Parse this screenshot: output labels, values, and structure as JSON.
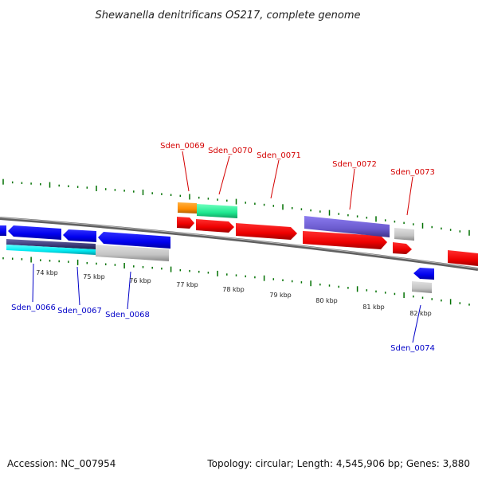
{
  "title": "Shewanella denitrificans OS217, complete genome",
  "footer": {
    "accession": "Accession: NC_007954",
    "topology": "Topology: circular; Length: 4,545,906 bp; Genes: 3,880"
  },
  "ruler_labels": [
    "74 kbp",
    "75 kbp",
    "76 kbp",
    "77 kbp",
    "78 kbp",
    "79 kbp",
    "80 kbp",
    "81 kbp",
    "82 kbp"
  ],
  "genes_forward": [
    {
      "id": "Sden_0069",
      "label": "Sden_0069"
    },
    {
      "id": "Sden_0070",
      "label": "Sden_0070"
    },
    {
      "id": "Sden_0071",
      "label": "Sden_0071"
    },
    {
      "id": "Sden_0072",
      "label": "Sden_0072"
    },
    {
      "id": "Sden_0073",
      "label": "Sden_0073"
    }
  ],
  "genes_reverse": [
    {
      "id": "Sden_0066",
      "label": "Sden_0066"
    },
    {
      "id": "Sden_0067",
      "label": "Sden_0067"
    },
    {
      "id": "Sden_0068",
      "label": "Sden_0068"
    },
    {
      "id": "Sden_0074",
      "label": "Sden_0074"
    }
  ],
  "colors": {
    "forward_cds": "#ff0000",
    "reverse_cds": "#0000ff",
    "backbone": "#808080",
    "tick": "#007000",
    "label_forward": "#d40000",
    "label_reverse": "#0000c8"
  }
}
